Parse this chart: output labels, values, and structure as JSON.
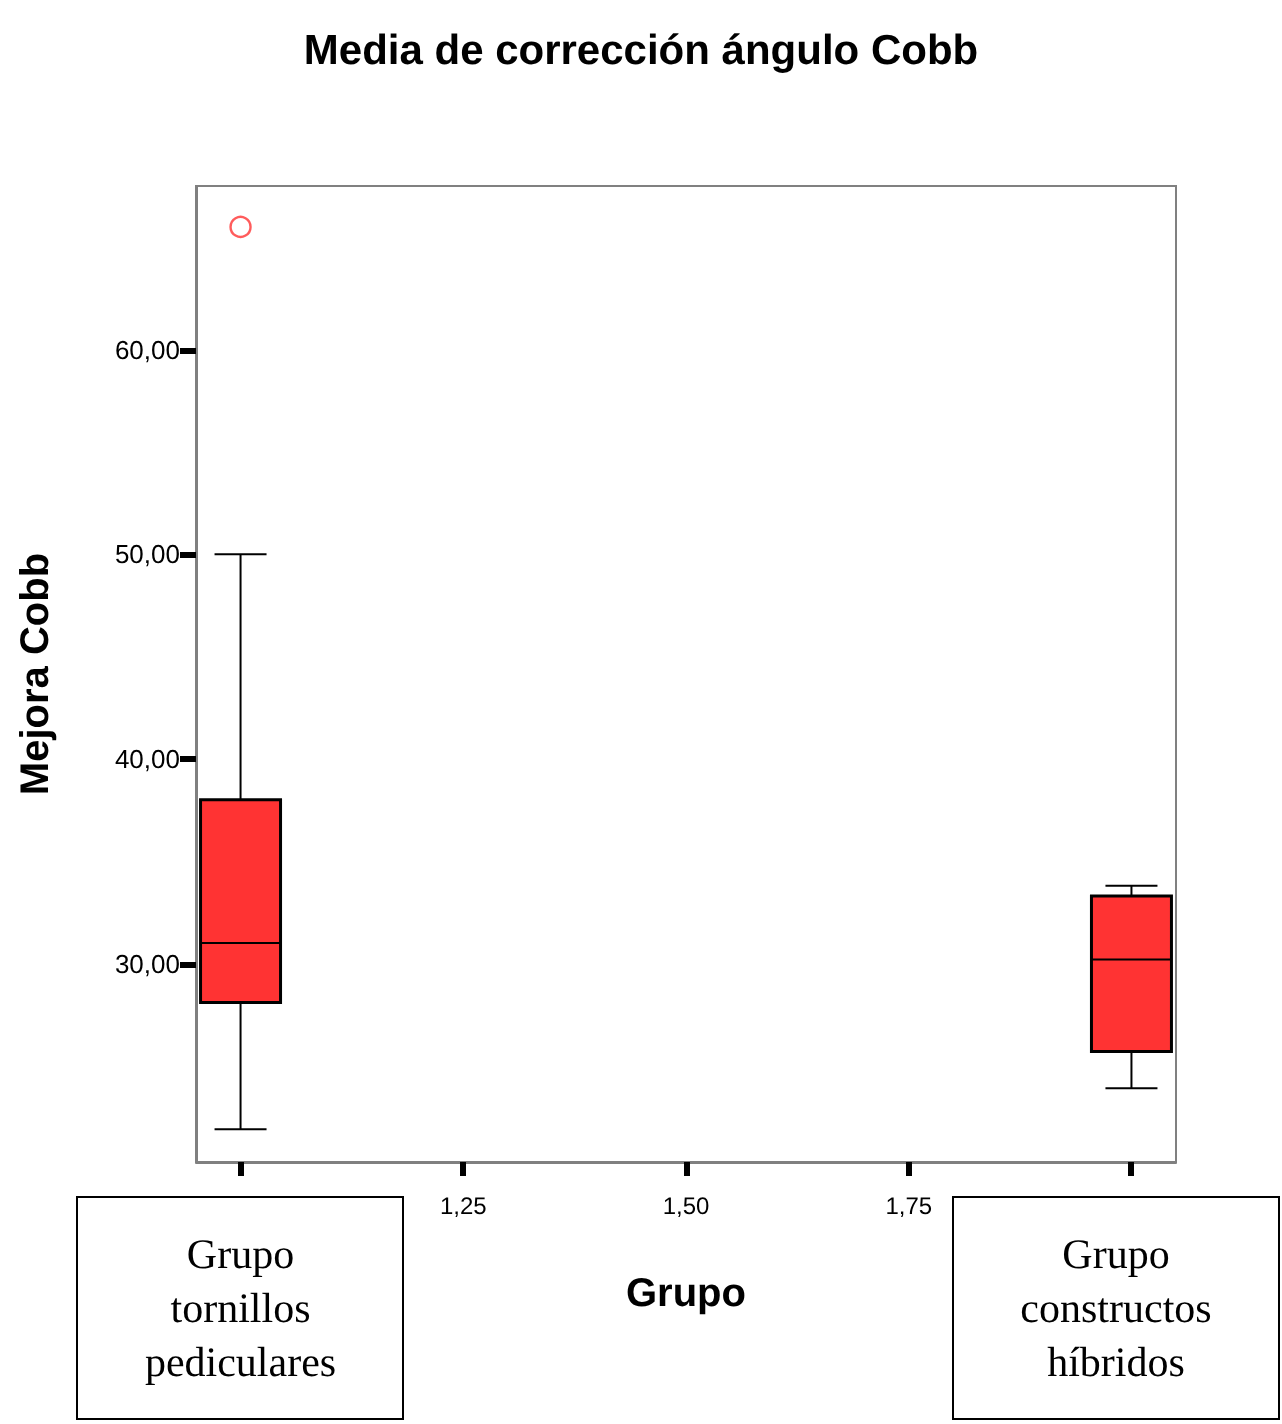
{
  "chart_data": {
    "type": "box",
    "title": "Media de corrección ángulo Cobb",
    "xlabel": "Grupo",
    "ylabel": "Mejora Cobb",
    "x": [
      1,
      2
    ],
    "boxes": [
      {
        "low": 21.9,
        "q1": 28.1,
        "median": 31.0,
        "q3": 38.0,
        "high": 50.0,
        "outliers": [
          66.0
        ]
      },
      {
        "low": 23.9,
        "q1": 25.7,
        "median": 30.2,
        "q3": 33.3,
        "high": 33.8
      }
    ],
    "color": "#ff3333",
    "annotations": [
      "Grupo tornillos pediculares",
      "Grupo constructos híbridos"
    ],
    "xlim": [
      0.95,
      2.05
    ],
    "xticks": [
      {
        "value": 1,
        "label": null
      },
      {
        "value": 1.25,
        "label": "1,25"
      },
      {
        "value": 1.5,
        "label": "1,50"
      },
      {
        "value": 1.75,
        "label": "1,75"
      },
      {
        "value": 2,
        "label": null
      }
    ],
    "ylim": [
      20.3,
      68.0
    ],
    "yticks": [
      {
        "value": 30,
        "label": "30,00"
      },
      {
        "value": 40,
        "label": "40,00"
      },
      {
        "value": 50,
        "label": "50,00"
      },
      {
        "value": 60,
        "label": "60,00"
      }
    ],
    "grid": false
  }
}
